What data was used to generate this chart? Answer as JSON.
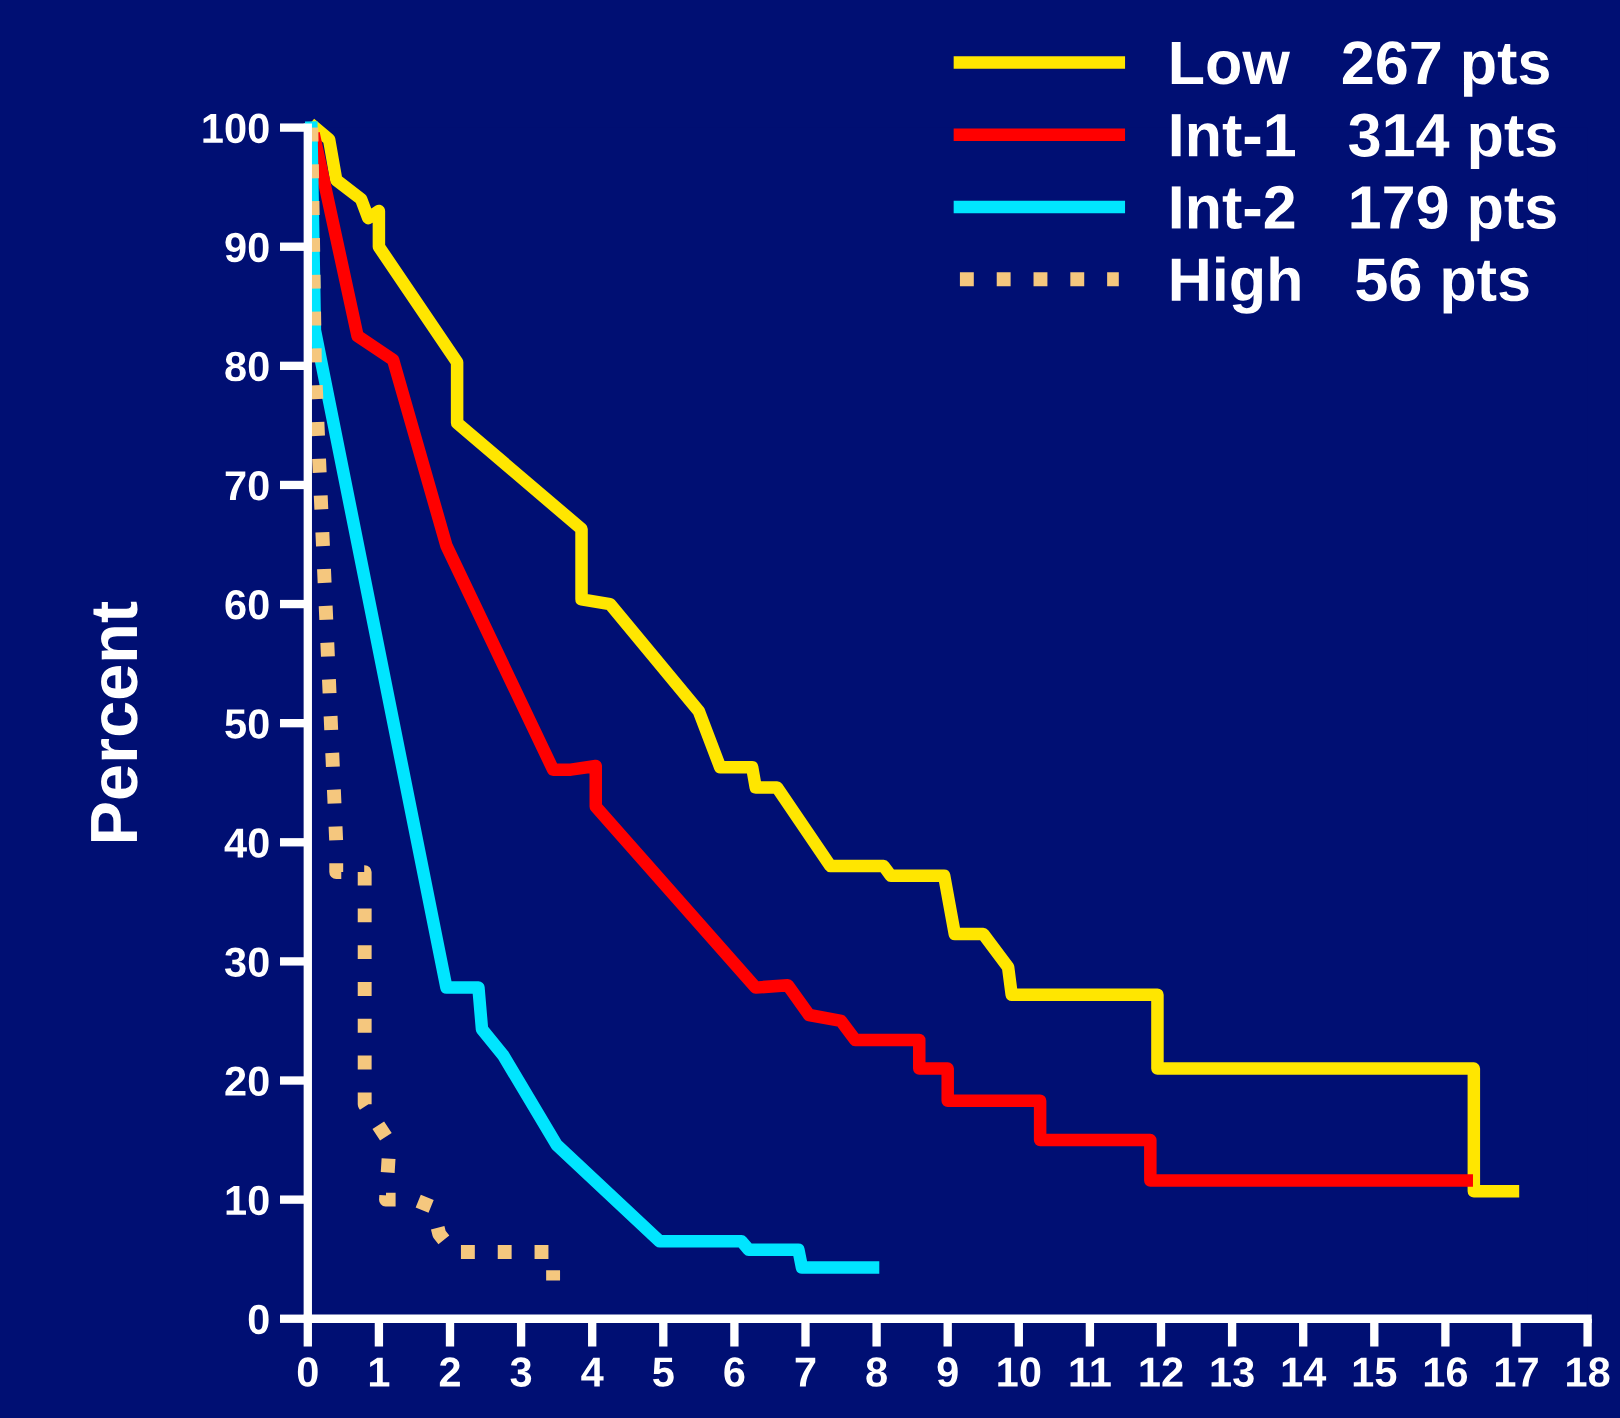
{
  "chart_data": {
    "type": "line",
    "ylabel": "Percent",
    "xlim": [
      0,
      18
    ],
    "ylim": [
      0,
      100
    ],
    "xticks": [
      0,
      1,
      2,
      3,
      4,
      5,
      6,
      7,
      8,
      9,
      10,
      11,
      12,
      13,
      14,
      15,
      16,
      17,
      18
    ],
    "yticks": [
      0,
      10,
      20,
      30,
      40,
      50,
      60,
      70,
      80,
      90,
      100
    ],
    "legend": "top right",
    "grid": false,
    "marker": "none",
    "series": [
      {
        "name": "Low   267 pts",
        "color": "#ffe600",
        "line_style": "solid",
        "x": [
          0.1,
          0.3,
          0.4,
          0.75,
          0.85,
          1.0,
          1.0,
          2.1,
          2.1,
          3.85,
          3.85,
          4.25,
          5.5,
          5.8,
          5.9,
          6.25,
          6.3,
          6.6,
          7.35,
          8.1,
          8.2,
          8.95,
          9.1,
          9.5,
          9.85,
          9.9,
          11.95,
          11.95,
          16.4,
          16.4,
          16.95
        ],
        "values": [
          100,
          99,
          95.6,
          94,
          92.4,
          93,
          90,
          80.3,
          75.2,
          66.3,
          60.4,
          60,
          51,
          46.3,
          46.3,
          46.3,
          44.6,
          44.6,
          38,
          38,
          37.2,
          37.2,
          32.3,
          32.3,
          29.5,
          27.2,
          27.2,
          21,
          21,
          10.7,
          10.7
        ]
      },
      {
        "name": "Int-1   314 pts",
        "color": "#ff0000",
        "line_style": "solid",
        "x": [
          0.1,
          0.7,
          1.2,
          1.95,
          3.45,
          3.7,
          4.05,
          4.05,
          6.3,
          6.75,
          7.05,
          7.5,
          7.7,
          8.6,
          8.6,
          9.0,
          9.0,
          10.3,
          10.3,
          11.85,
          11.85,
          16.3
        ],
        "values": [
          99,
          82.5,
          80.5,
          64.9,
          46.1,
          46.1,
          46.4,
          43,
          27.8,
          28,
          25.5,
          25,
          23.4,
          23.4,
          21,
          21,
          18.3,
          18.3,
          15,
          15,
          11.6,
          11.6
        ]
      },
      {
        "name": "Int-2   179 pts",
        "color": "#00e5ff",
        "line_style": "solid",
        "x": [
          0.05,
          0.1,
          1.95,
          2.4,
          2.45,
          2.75,
          3.5,
          4.95,
          6.1,
          6.2,
          6.9,
          6.95,
          7.95
        ],
        "values": [
          100,
          83,
          27.8,
          27.8,
          24.3,
          22.1,
          14.6,
          6.5,
          6.5,
          5.8,
          5.8,
          4.3,
          4.3
        ]
      },
      {
        "name": "High   56 pts",
        "color": "#f5c77e",
        "line_style": "dotted",
        "x": [
          0.05,
          0.1,
          0.4,
          0.4,
          0.8,
          0.8,
          1.15,
          1.1,
          1.5,
          1.75,
          1.85,
          2.05,
          3.45,
          3.45
        ],
        "values": [
          100,
          80,
          40,
          37.5,
          37.5,
          18,
          14.8,
          10,
          10,
          9.4,
          7.1,
          5.6,
          5.6,
          3.2
        ]
      }
    ]
  }
}
